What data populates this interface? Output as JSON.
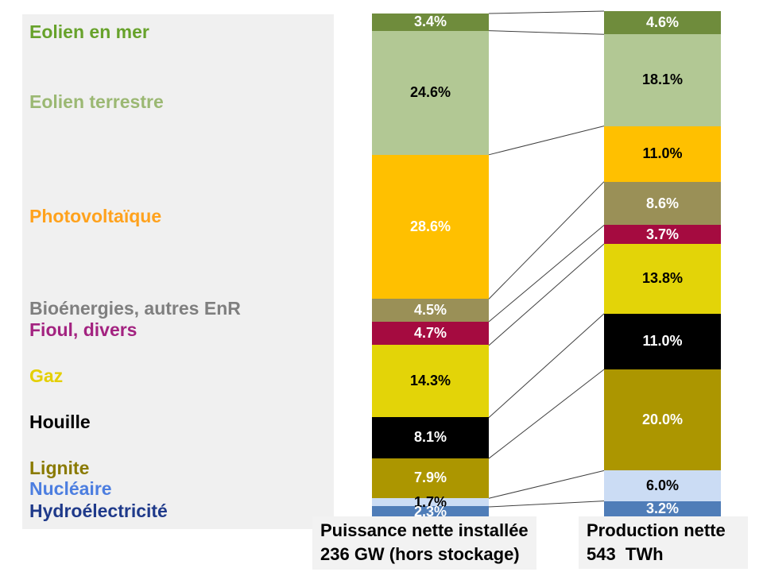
{
  "legend": {
    "panel_background": "#F0F0F0",
    "items": [
      {
        "label": "Eolien en mer",
        "color": "#67A22B"
      },
      {
        "label": "Eolien terrestre",
        "color": "#9BB873"
      },
      {
        "label": "Photovoltaïque",
        "color": "#FFA21D"
      },
      {
        "label": "Bioénergies, autres EnR",
        "color": "#7F7F7F"
      },
      {
        "label": "Fioul, divers",
        "color": "#A32380"
      },
      {
        "label": "Gaz",
        "color": "#E4CF00"
      },
      {
        "label": "Houille",
        "color": "#000000"
      },
      {
        "label": "Lignite",
        "color": "#8A7A00"
      },
      {
        "label": "Nucléaire",
        "color": "#4C7EE0"
      },
      {
        "label": "Hydroélectricité",
        "color": "#1F3A8A"
      }
    ]
  },
  "chart_data": {
    "type": "bar",
    "stacked": true,
    "unit": "%",
    "grid": false,
    "legend_position": "left",
    "categories": [
      "Eolien en mer",
      "Eolien terrestre",
      "Photovoltaïque",
      "Bioénergies, autres EnR",
      "Fioul, divers",
      "Gaz",
      "Houille",
      "Lignite",
      "Nucléaire",
      "Hydroélectricité"
    ],
    "segment_colors": [
      "#6F8C3C",
      "#B2C894",
      "#FFC000",
      "#9A9057",
      "#A50B40",
      "#E3D408",
      "#000000",
      "#AC9600",
      "#CBDCF4",
      "#4F7DB8"
    ],
    "connector_line_color": "#404040",
    "caption_background": "#F2F2F2",
    "series": [
      {
        "name": "Puissance nette installée",
        "values": [
          3.4,
          24.6,
          28.6,
          4.5,
          4.7,
          14.3,
          8.1,
          7.9,
          1.7,
          2.3
        ],
        "value_label_colors": [
          "#FFFFFF",
          "#000000",
          "#FFFFFF",
          "#FFFFFF",
          "#FFFFFF",
          "#000000",
          "#FFFFFF",
          "#FFFFFF",
          "#000000",
          "#FFFFFF"
        ],
        "caption": [
          "Puissance nette installée",
          "236 GW (hors stockage)"
        ]
      },
      {
        "name": "Production nette",
        "values": [
          4.6,
          18.1,
          11.0,
          8.6,
          3.7,
          13.8,
          11.0,
          20.0,
          6.0,
          3.2
        ],
        "value_label_colors": [
          "#FFFFFF",
          "#000000",
          "#000000",
          "#FFFFFF",
          "#FFFFFF",
          "#000000",
          "#FFFFFF",
          "#FFFFFF",
          "#000000",
          "#FFFFFF"
        ],
        "caption": [
          "Production nette",
          "543  TWh"
        ]
      }
    ]
  }
}
